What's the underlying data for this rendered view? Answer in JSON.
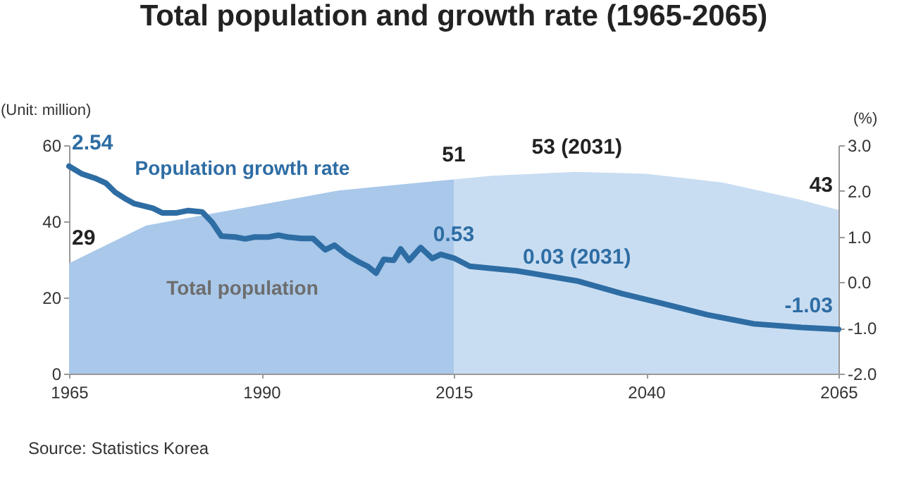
{
  "chart_data": {
    "type": "line",
    "title": "Total population and growth rate (1965-2065)",
    "ylabel": "(Unit: million)",
    "y2label": "(%)",
    "xlim": [
      1965,
      2065
    ],
    "xticks": [
      1965,
      1990,
      2015,
      2040,
      2065
    ],
    "ylim": [
      0,
      60
    ],
    "yticks": [
      0,
      20,
      40,
      60
    ],
    "y2lim": [
      -2,
      3
    ],
    "y2ticks": [
      {
        "value": 3,
        "label": "3.0"
      },
      {
        "value": 2,
        "label": "2.0"
      },
      {
        "value": 1,
        "label": "1.0"
      },
      {
        "value": 0,
        "label": "0.0"
      },
      {
        "value": -1,
        "label": "-1.0"
      },
      {
        "value": -2,
        "label": "-2.0"
      }
    ],
    "series": [
      {
        "name": "Total population",
        "type": "area",
        "color": "#a9c8ea",
        "x": [
          1965,
          1975,
          1990,
          2000,
          2015
        ],
        "values": [
          29,
          38.9,
          44.4,
          48.1,
          51
        ],
        "value_labels": [
          "29",
          null,
          null,
          null,
          "51"
        ]
      },
      {
        "type": "area",
        "color": "#c9ddf2",
        "x": [
          2015,
          2020,
          2031,
          2040,
          2050,
          2060,
          2065
        ],
        "values": [
          51,
          52,
          53,
          52.5,
          50.2,
          45.7,
          43
        ],
        "value_labels": [
          null,
          null,
          "53 (2031)",
          null,
          null,
          null,
          "43"
        ]
      },
      {
        "name": "Population growth rate",
        "type": "line",
        "axis": "y2",
        "color": "#2e6da4",
        "x": [
          1965,
          1966.7,
          1968.5,
          1969.8,
          1971,
          1972.2,
          1973.5,
          1974.7,
          1975.9,
          1977.1,
          1979,
          1980.5,
          1982.3,
          1983.6,
          1984.8,
          1986.6,
          1987.9,
          1989.1,
          1990.9,
          1992.2,
          1993.4,
          1995.2,
          1996.7,
          1998.3,
          1999.5,
          2001,
          2002.6,
          2003.8,
          2004.9,
          2005.9,
          2007.2,
          2008.1,
          2009.2,
          2010.7,
          2012.2,
          2013.3,
          2015,
          2017.1,
          2023.2,
          2031,
          2036.9,
          2041.8,
          2047.9,
          2054,
          2060.2,
          2065
        ],
        "values": [
          2.54,
          2.37,
          2.27,
          2.17,
          1.97,
          1.84,
          1.72,
          1.67,
          1.62,
          1.52,
          1.52,
          1.57,
          1.54,
          1.31,
          1.01,
          0.99,
          0.95,
          0.99,
          0.99,
          1.03,
          0.99,
          0.96,
          0.96,
          0.71,
          0.81,
          0.61,
          0.45,
          0.35,
          0.2,
          0.5,
          0.48,
          0.73,
          0.48,
          0.76,
          0.52,
          0.61,
          0.53,
          0.35,
          0.25,
          0.03,
          -0.25,
          -0.45,
          -0.71,
          -0.91,
          -0.99,
          -1.03
        ],
        "value_labels": [
          "2.54",
          null,
          null,
          null,
          null,
          null,
          null,
          null,
          null,
          null,
          null,
          null,
          null,
          null,
          null,
          null,
          null,
          null,
          null,
          null,
          null,
          null,
          null,
          null,
          null,
          null,
          null,
          null,
          null,
          null,
          null,
          null,
          null,
          null,
          null,
          null,
          "0.53",
          null,
          null,
          "0.03 (2031)",
          null,
          null,
          null,
          null,
          null,
          "-1.03"
        ]
      }
    ],
    "annotations": [
      "Source: Statistics Korea"
    ]
  }
}
